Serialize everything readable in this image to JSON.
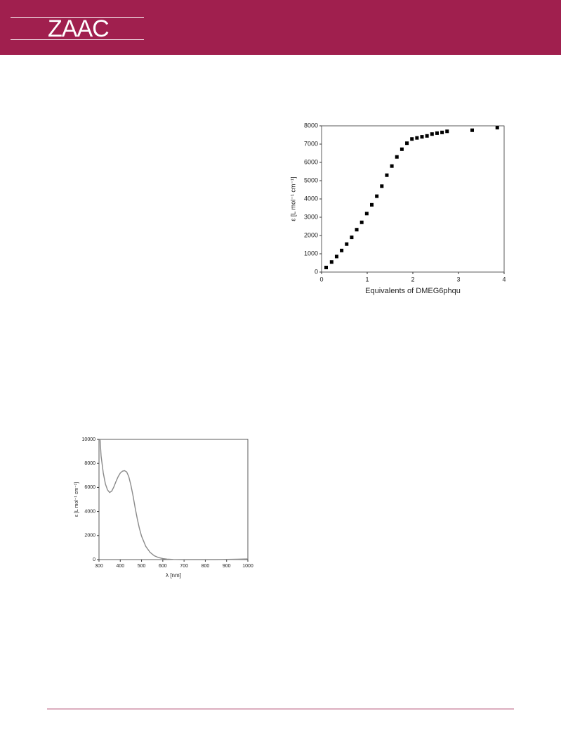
{
  "header": {
    "title": "ZAAC"
  },
  "chart_data": [
    {
      "type": "scatter",
      "xlabel": "Equivalents of DMEG6phqu",
      "ylabel": "ε [L mol⁻¹ cm⁻¹]",
      "color": "#000000",
      "x": [
        0.1,
        0.22,
        0.33,
        0.44,
        0.55,
        0.66,
        0.77,
        0.88,
        0.99,
        1.1,
        1.21,
        1.32,
        1.43,
        1.54,
        1.65,
        1.76,
        1.87,
        1.98,
        2.09,
        2.2,
        2.31,
        2.42,
        2.53,
        2.64,
        2.75,
        3.3,
        3.85
      ],
      "values": [
        250,
        550,
        850,
        1180,
        1530,
        1900,
        2320,
        2720,
        3200,
        3680,
        4150,
        4700,
        5300,
        5800,
        6300,
        6720,
        7050,
        7280,
        7340,
        7400,
        7450,
        7550,
        7600,
        7640,
        7700,
        7760,
        7900
      ],
      "xlim": [
        0,
        4
      ],
      "xticks": [
        0,
        1,
        2,
        3,
        4
      ],
      "ylim": [
        0,
        8000
      ],
      "yticks": [
        0,
        1000,
        2000,
        3000,
        4000,
        5000,
        6000,
        7000,
        8000
      ]
    },
    {
      "type": "line",
      "xlabel": "λ [nm]",
      "ylabel": "ε [L mol⁻¹ cm⁻¹]",
      "color": "#8a8a8a",
      "x": [
        305,
        310,
        320,
        330,
        340,
        350,
        360,
        370,
        380,
        390,
        400,
        410,
        420,
        430,
        440,
        450,
        460,
        470,
        480,
        490,
        500,
        520,
        540,
        560,
        580,
        600,
        620,
        650,
        700,
        750,
        800,
        850,
        900,
        950,
        1000
      ],
      "values": [
        10000,
        8600,
        7200,
        6300,
        5800,
        5580,
        5700,
        6050,
        6500,
        6900,
        7200,
        7350,
        7400,
        7300,
        6900,
        6200,
        5300,
        4300,
        3400,
        2600,
        1950,
        1100,
        600,
        320,
        170,
        80,
        40,
        10,
        0,
        0,
        0,
        0,
        20,
        30,
        50
      ],
      "xlim": [
        300,
        1000
      ],
      "xticks": [
        300,
        400,
        500,
        600,
        700,
        800,
        900,
        1000
      ],
      "ylim": [
        0,
        10000
      ],
      "yticks": [
        0,
        2000,
        4000,
        6000,
        8000,
        10000
      ]
    }
  ]
}
